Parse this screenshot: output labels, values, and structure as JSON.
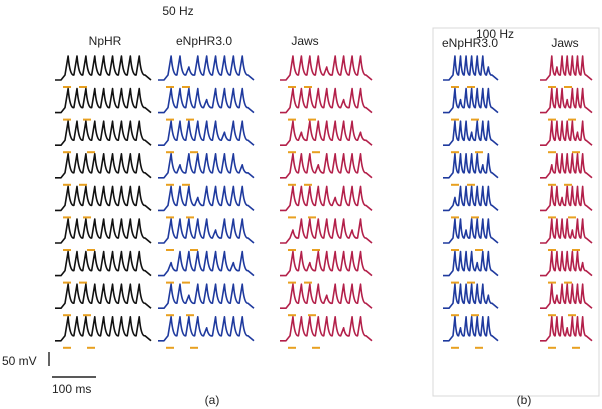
{
  "panel_a": {
    "title": "50 Hz",
    "columns": [
      "NpHR",
      "eNpHR3.0",
      "Jaws"
    ],
    "label": "(a)"
  },
  "panel_b": {
    "title": "100 Hz",
    "columns": [
      "eNpHR3.0",
      "Jaws"
    ],
    "label": "(b)"
  },
  "scale_bar": {
    "voltage": "50 mV",
    "time": "100 ms"
  }
}
